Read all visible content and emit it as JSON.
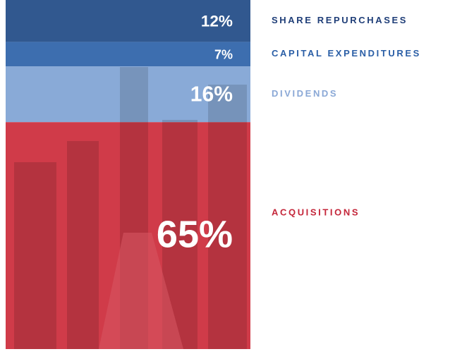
{
  "chart_data": {
    "type": "bar",
    "stacked": true,
    "series": [
      {
        "name": "SHARE REPURCHASES",
        "color": "#1f4a86",
        "label_color": "#1f3e78",
        "values": [
          12
        ],
        "value_labels": [
          "12%"
        ]
      },
      {
        "name": "CAPITAL EXPENDITURES",
        "color": "#2c62a8",
        "label_color": "#2a5ea6",
        "values": [
          7
        ],
        "value_labels": [
          "7%"
        ]
      },
      {
        "name": "DIVIDENDS",
        "color": "#7fa3d4",
        "label_color": "#8aa8d6",
        "values": [
          16
        ],
        "value_labels": [
          "16%"
        ]
      },
      {
        "name": "ACQUISITIONS",
        "color": "#cc2a3a",
        "label_color": "#c4263a",
        "values": [
          65
        ],
        "value_labels": [
          "65%"
        ]
      }
    ]
  }
}
